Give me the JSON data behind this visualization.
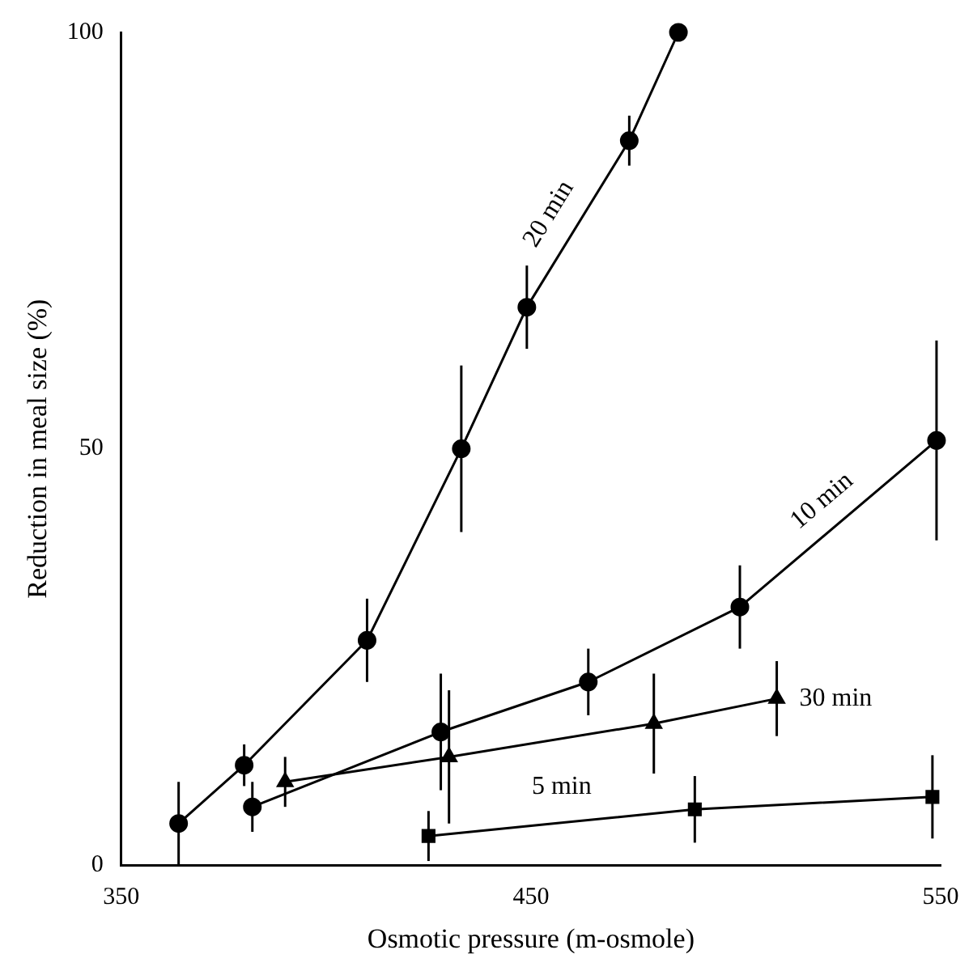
{
  "chart_data": {
    "type": "line",
    "xlabel": "Osmotic pressure (m-osmole)",
    "ylabel": "Reduction in meal size (%)",
    "xlim": [
      350,
      550
    ],
    "xticks": [
      350,
      450,
      550
    ],
    "ylim": [
      0,
      100
    ],
    "yticks": [
      0,
      50,
      100
    ],
    "grid": false,
    "legend": false,
    "line_style": "solid",
    "series": [
      {
        "name": "20 min",
        "color": "#000000",
        "marker": "circle",
        "x": [
          364,
          380,
          410,
          433,
          449,
          474,
          486
        ],
        "values": [
          5,
          12,
          27,
          50,
          67,
          87,
          100
        ],
        "errors": [
          5,
          2.5,
          5,
          10,
          5,
          3,
          null
        ]
      },
      {
        "name": "10 min",
        "color": "#000000",
        "marker": "circle",
        "x": [
          382,
          428,
          464,
          501,
          549
        ],
        "values": [
          7,
          16,
          22,
          31,
          51
        ],
        "errors": [
          3,
          7,
          4,
          5,
          12
        ]
      },
      {
        "name": "30 min",
        "color": "#000000",
        "marker": "triangle",
        "x": [
          390,
          430,
          480,
          510
        ],
        "values": [
          10,
          13,
          17,
          20
        ],
        "errors": [
          3,
          8,
          6,
          4.5
        ]
      },
      {
        "name": "5 min",
        "color": "#000000",
        "marker": "square",
        "x": [
          425,
          490,
          548
        ],
        "values": [
          3.5,
          6.7,
          8.2
        ],
        "errors": [
          3,
          4,
          5
        ]
      }
    ]
  }
}
